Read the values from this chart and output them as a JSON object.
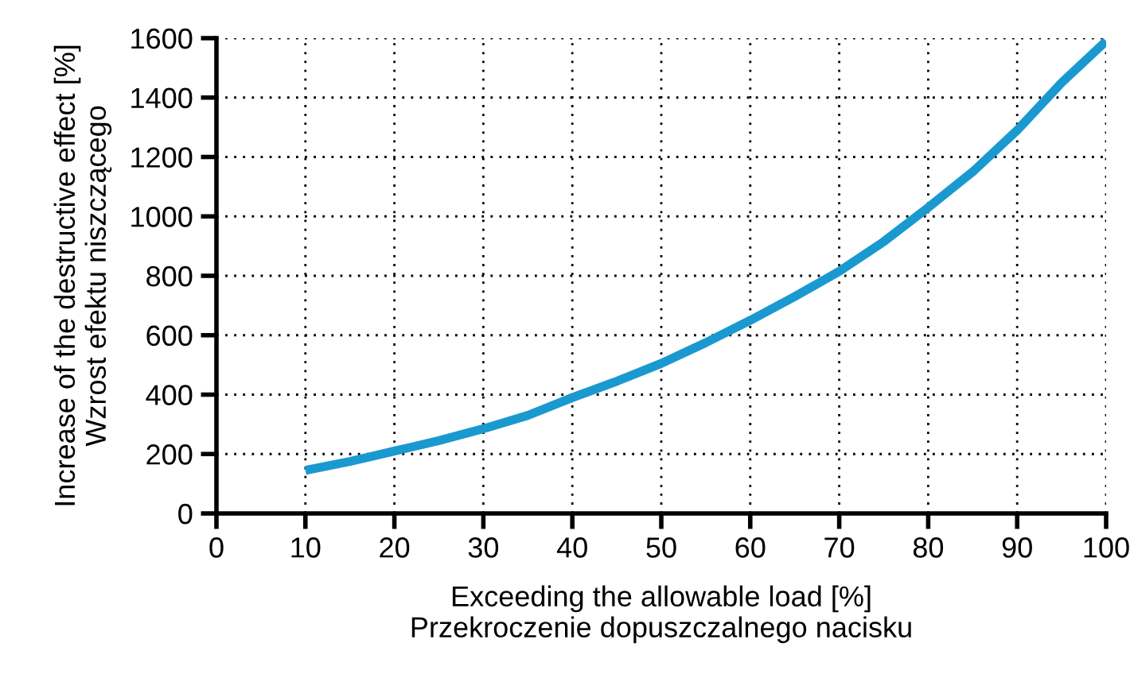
{
  "chart_data": {
    "type": "line",
    "xlabel": "Exceeding the allowable load [%]\nPrzekroczenie dopuszczalnego nacisku",
    "ylabel": "Increase of the destructive effect [%]\nWzrost efektu niszczącego",
    "series": [
      {
        "color": "#1a99d0",
        "x": [
          10,
          15,
          20,
          25,
          30,
          35,
          40,
          45,
          50,
          55,
          60,
          65,
          70,
          75,
          80,
          85,
          90,
          95,
          100
        ],
        "values": [
          145,
          175,
          210,
          245,
          285,
          330,
          390,
          445,
          505,
          575,
          650,
          730,
          815,
          915,
          1030,
          1150,
          1290,
          1450,
          1590
        ]
      }
    ],
    "xlim": [
      0,
      100
    ],
    "xticks": [
      0,
      10,
      20,
      30,
      40,
      50,
      60,
      70,
      80,
      90,
      100
    ],
    "ylim": [
      0,
      1600
    ],
    "yticks": [
      0,
      200,
      400,
      600,
      800,
      1000,
      1200,
      1400,
      1600
    ],
    "grid": true,
    "marker": "none",
    "line_style": "solid",
    "legend": false
  }
}
